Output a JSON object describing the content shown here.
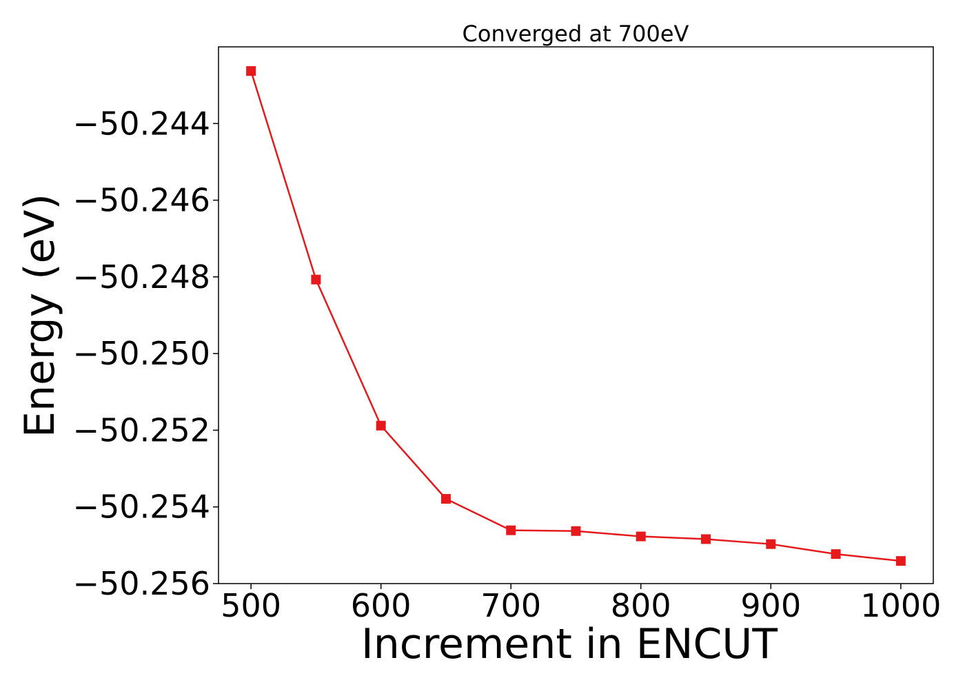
{
  "chart_data": {
    "type": "line",
    "title": "Converged at 700eV",
    "xlabel": "Increment in ENCUT",
    "ylabel": "Energy (eV)",
    "x": [
      500,
      550,
      600,
      650,
      700,
      750,
      800,
      850,
      900,
      950,
      1000
    ],
    "series": [
      {
        "values": [
          -50.24263,
          -50.24807,
          -50.25188,
          -50.25379,
          -50.25461,
          -50.25463,
          -50.25477,
          -50.25484,
          -50.25497,
          -50.25523,
          -50.25541
        ],
        "color": "#e41a1c",
        "marker": "square"
      }
    ],
    "xlim": [
      475,
      1025
    ],
    "ylim": [
      -50.256,
      -50.242
    ],
    "xticks": [
      500,
      600,
      700,
      800,
      900,
      1000
    ],
    "yticks": [
      -50.256,
      -50.254,
      -50.252,
      -50.25,
      -50.248,
      -50.246,
      -50.244
    ],
    "xtick_labels": [
      "500",
      "600",
      "700",
      "800",
      "900",
      "1000"
    ],
    "ytick_labels": [
      "−50.256",
      "−50.254",
      "−50.252",
      "−50.250",
      "−50.248",
      "−50.246",
      "−50.244"
    ],
    "grid": false,
    "legend": false
  }
}
